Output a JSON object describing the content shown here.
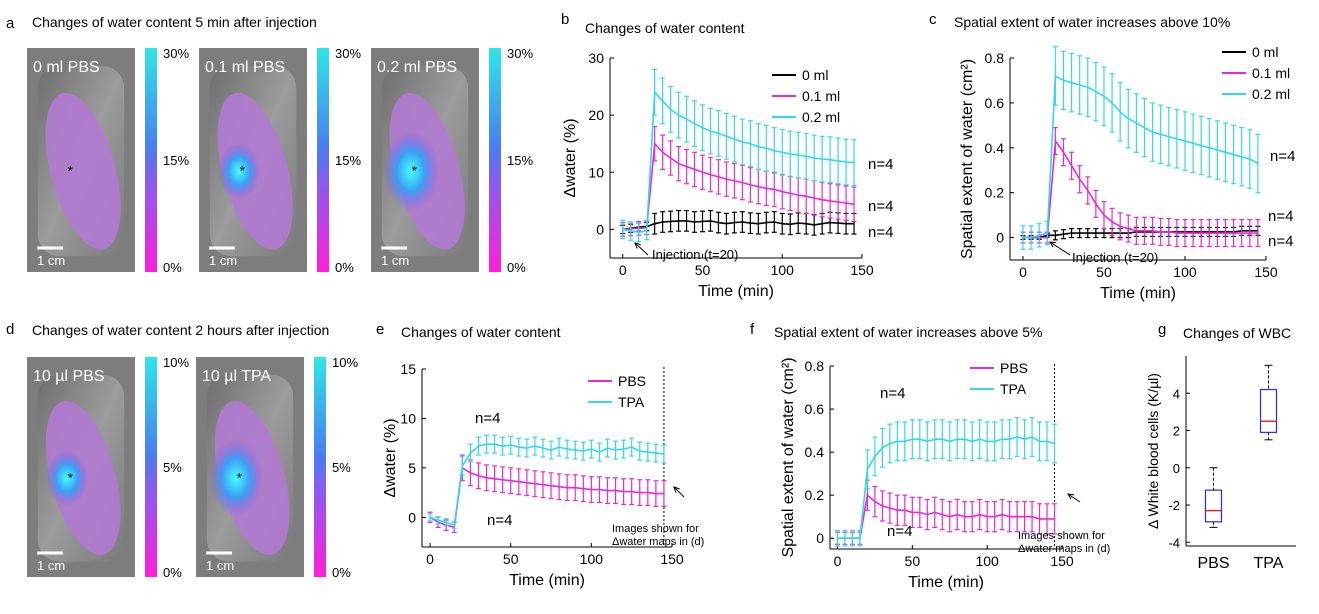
{
  "colors": {
    "cyan": "#33d8e8",
    "magenta": "#e62ad6",
    "black": "#000000",
    "box_blue": "#2a2ae6",
    "median_red": "#e02020",
    "gray_tissue": "#9a9a9a"
  },
  "panel_a": {
    "letter": "a",
    "title": "Changes of water content 5 min after injection",
    "images": [
      {
        "label": "0 ml PBS",
        "scale": "1 cm",
        "mark": "*",
        "hot": 0.0
      },
      {
        "label": "0.1 ml PBS",
        "scale": "1 cm",
        "mark": "*",
        "hot": 0.55
      },
      {
        "label": "0.2 ml PBS",
        "scale": "1 cm",
        "mark": "*",
        "hot": 1.0
      }
    ],
    "colorbar_ticks": [
      "30%",
      "15%",
      "0%"
    ]
  },
  "panel_d": {
    "letter": "d",
    "title": "Changes of water content 2 hours after injection",
    "images": [
      {
        "label": "10 µl PBS",
        "scale": "1 cm",
        "mark": "*",
        "hot": 0.55
      },
      {
        "label": "10 µl TPA",
        "scale": "1 cm",
        "mark": "*",
        "hot": 0.95
      }
    ],
    "colorbar_ticks": [
      "10%",
      "5%",
      "0%"
    ]
  },
  "chart_data": [
    {
      "id": "b",
      "type": "line",
      "letter": "b",
      "title": "Changes of water content",
      "xlabel": "Time (min)",
      "ylabel": "Δwater (%)",
      "xlim": [
        -8,
        150
      ],
      "ylim": [
        -5,
        30
      ],
      "xticks": [
        0,
        50,
        100,
        150
      ],
      "yticks": [
        0,
        10,
        20,
        30
      ],
      "legend": "top-right",
      "annotation": "Injection (t=20)",
      "n_labels": [
        {
          "text": "n=4",
          "series": "0.2 ml"
        },
        {
          "text": "n=4",
          "series": "0.1 ml"
        },
        {
          "text": "n=4",
          "series": "0 ml"
        }
      ],
      "x": [
        0,
        5,
        10,
        15,
        20,
        25,
        30,
        35,
        40,
        45,
        50,
        55,
        60,
        65,
        70,
        75,
        80,
        85,
        90,
        95,
        100,
        105,
        110,
        115,
        120,
        125,
        130,
        135,
        140,
        145
      ],
      "series": [
        {
          "name": "0 ml",
          "color": "#000000",
          "err": 1.8,
          "values": [
            0,
            0.2,
            0.4,
            0.5,
            1.0,
            1.3,
            1.4,
            1.5,
            1.5,
            1.3,
            1.4,
            1.5,
            1.2,
            1.0,
            1.2,
            1.3,
            1.1,
            1.0,
            1.2,
            1.3,
            1.0,
            0.9,
            1.1,
            1.0,
            0.8,
            1.0,
            1.2,
            1.1,
            1.0,
            1.0
          ]
        },
        {
          "name": "0.1 ml",
          "color": "#e62ad6",
          "err": 3.0,
          "values": [
            0,
            0.1,
            0.2,
            0.3,
            15.0,
            13.5,
            12.5,
            11.5,
            11.0,
            10.5,
            10.0,
            9.6,
            9.2,
            8.8,
            8.5,
            8.2,
            7.8,
            7.5,
            7.2,
            7.0,
            6.6,
            6.3,
            6.0,
            5.8,
            5.5,
            5.2,
            5.0,
            4.8,
            4.6,
            4.4
          ]
        },
        {
          "name": "0.2 ml",
          "color": "#33d8e8",
          "err": 4.0,
          "values": [
            0,
            -0.3,
            -0.5,
            -0.2,
            24.0,
            22.5,
            21.0,
            20.0,
            19.3,
            18.5,
            17.8,
            17.2,
            16.8,
            16.3,
            15.8,
            15.3,
            15.0,
            14.5,
            14.2,
            13.8,
            13.5,
            13.2,
            13.0,
            12.8,
            12.5,
            12.3,
            12.2,
            12.0,
            11.8,
            11.7
          ]
        }
      ]
    },
    {
      "id": "c",
      "type": "line",
      "letter": "c",
      "title": "Spatial extent of water increases above 10%",
      "xlabel": "Time (min)",
      "ylabel": "Spatial extent of water (cm²)",
      "xlim": [
        -8,
        150
      ],
      "ylim": [
        -0.1,
        0.8
      ],
      "xticks": [
        0,
        50,
        100,
        150
      ],
      "yticks": [
        0,
        0.2,
        0.4,
        0.6,
        0.8
      ],
      "legend": "top-right",
      "annotation": "Injection (t=20)",
      "n_labels": [
        {
          "text": "n=4",
          "series": "0.2 ml"
        },
        {
          "text": "n=4",
          "series": "0.1 ml"
        },
        {
          "text": "n=4",
          "series": "0 ml"
        }
      ],
      "x": [
        0,
        5,
        10,
        15,
        20,
        25,
        30,
        35,
        40,
        45,
        50,
        55,
        60,
        65,
        70,
        75,
        80,
        85,
        90,
        95,
        100,
        105,
        110,
        115,
        120,
        125,
        130,
        135,
        140,
        145
      ],
      "series": [
        {
          "name": "0 ml",
          "color": "#000000",
          "err": 0.02,
          "values": [
            0,
            0,
            0,
            0.01,
            0.01,
            0.015,
            0.02,
            0.02,
            0.02,
            0.02,
            0.02,
            0.02,
            0.02,
            0.02,
            0.025,
            0.025,
            0.025,
            0.025,
            0.025,
            0.025,
            0.025,
            0.025,
            0.025,
            0.025,
            0.025,
            0.025,
            0.025,
            0.03,
            0.03,
            0.03
          ]
        },
        {
          "name": "0.1 ml",
          "color": "#e62ad6",
          "err": 0.06,
          "values": [
            0,
            0,
            0,
            0,
            0.43,
            0.38,
            0.32,
            0.26,
            0.21,
            0.15,
            0.1,
            0.07,
            0.05,
            0.04,
            0.03,
            0.03,
            0.03,
            0.025,
            0.025,
            0.02,
            0.02,
            0.02,
            0.02,
            0.02,
            0.02,
            0.02,
            0.02,
            0.02,
            0.02,
            0.02
          ]
        },
        {
          "name": "0.2 ml",
          "color": "#33d8e8",
          "err": 0.13,
          "values": [
            0,
            0,
            0.01,
            0.02,
            0.72,
            0.7,
            0.69,
            0.68,
            0.67,
            0.65,
            0.63,
            0.6,
            0.56,
            0.53,
            0.51,
            0.49,
            0.47,
            0.46,
            0.45,
            0.44,
            0.43,
            0.42,
            0.41,
            0.4,
            0.39,
            0.38,
            0.37,
            0.36,
            0.35,
            0.33
          ]
        }
      ]
    },
    {
      "id": "e",
      "type": "line",
      "letter": "e",
      "title": "Changes of water content",
      "xlabel": "Time (min)",
      "ylabel": "Δwater (%)",
      "xlim": [
        -5,
        150
      ],
      "ylim": [
        -3,
        15
      ],
      "xticks": [
        0,
        50,
        100,
        150
      ],
      "yticks": [
        0,
        5,
        10,
        15
      ],
      "legend": "top-center",
      "vline_x": 145,
      "annotation": "Images shown for\nΔwater maps in (d)",
      "n_labels": [
        {
          "text": "n=4",
          "series": "TPA"
        },
        {
          "text": "n=4",
          "series": "PBS"
        }
      ],
      "x": [
        0,
        5,
        10,
        15,
        20,
        25,
        30,
        35,
        40,
        45,
        50,
        55,
        60,
        65,
        70,
        75,
        80,
        85,
        90,
        95,
        100,
        105,
        110,
        115,
        120,
        125,
        130,
        135,
        140,
        145
      ],
      "series": [
        {
          "name": "PBS",
          "color": "#e62ad6",
          "err": 1.3,
          "values": [
            0,
            -0.5,
            -0.8,
            -1.0,
            5.0,
            4.5,
            4.2,
            4.0,
            3.9,
            3.8,
            3.7,
            3.6,
            3.5,
            3.4,
            3.3,
            3.2,
            3.1,
            3.0,
            3.0,
            2.9,
            2.8,
            2.8,
            2.7,
            2.7,
            2.6,
            2.6,
            2.5,
            2.5,
            2.4,
            2.4
          ]
        },
        {
          "name": "TPA",
          "color": "#33d8e8",
          "err": 0.9,
          "values": [
            0,
            -0.3,
            -0.5,
            -0.8,
            5.2,
            6.5,
            7.2,
            7.4,
            7.4,
            7.2,
            7.3,
            7.1,
            7.0,
            7.2,
            7.0,
            6.8,
            7.1,
            6.9,
            6.8,
            6.7,
            6.9,
            6.6,
            7.0,
            6.8,
            6.9,
            7.1,
            6.7,
            6.6,
            6.5,
            6.4
          ]
        }
      ]
    },
    {
      "id": "f",
      "type": "line",
      "letter": "f",
      "title": "Spatial extent of water increases above 5%",
      "xlabel": "Time (min)",
      "ylabel": "Spatial extent of water (cm²)",
      "xlim": [
        -5,
        150
      ],
      "ylim": [
        -0.05,
        0.8
      ],
      "xticks": [
        0,
        50,
        100,
        150
      ],
      "yticks": [
        0,
        0.2,
        0.4,
        0.6,
        0.8
      ],
      "legend": "top-center",
      "vline_x": 145,
      "annotation": "Images shown for\nΔwater maps in (d)",
      "n_labels": [
        {
          "text": "n=4",
          "series": "TPA"
        },
        {
          "text": "n=4",
          "series": "PBS"
        }
      ],
      "x": [
        0,
        5,
        10,
        15,
        20,
        25,
        30,
        35,
        40,
        45,
        50,
        55,
        60,
        65,
        70,
        75,
        80,
        85,
        90,
        95,
        100,
        105,
        110,
        115,
        120,
        125,
        130,
        135,
        140,
        145
      ],
      "series": [
        {
          "name": "PBS",
          "color": "#e62ad6",
          "err": 0.07,
          "values": [
            0,
            0,
            0,
            0,
            0.2,
            0.17,
            0.15,
            0.14,
            0.13,
            0.13,
            0.12,
            0.12,
            0.11,
            0.12,
            0.11,
            0.1,
            0.11,
            0.1,
            0.1,
            0.11,
            0.1,
            0.1,
            0.11,
            0.1,
            0.1,
            0.1,
            0.1,
            0.09,
            0.09,
            0.09
          ]
        },
        {
          "name": "TPA",
          "color": "#33d8e8",
          "err": 0.09,
          "values": [
            0,
            0,
            0,
            0,
            0.32,
            0.38,
            0.42,
            0.44,
            0.45,
            0.45,
            0.46,
            0.46,
            0.45,
            0.46,
            0.46,
            0.45,
            0.46,
            0.46,
            0.45,
            0.46,
            0.45,
            0.45,
            0.46,
            0.46,
            0.47,
            0.46,
            0.47,
            0.45,
            0.45,
            0.44
          ]
        }
      ]
    },
    {
      "id": "g",
      "type": "box",
      "letter": "g",
      "title": "Changes of WBC",
      "ylabel": "Δ White blood cells (K/µl)",
      "categories": [
        "PBS",
        "TPA"
      ],
      "ylim": [
        -4.2,
        6
      ],
      "yticks": [
        -4,
        -2,
        0,
        2,
        4
      ],
      "boxes": [
        {
          "category": "PBS",
          "min": -3.2,
          "q1": -2.9,
          "median": -2.3,
          "q3": -1.2,
          "max": 0.0
        },
        {
          "category": "TPA",
          "min": 1.5,
          "q1": 1.9,
          "median": 2.5,
          "q3": 4.2,
          "max": 5.5
        }
      ]
    }
  ]
}
